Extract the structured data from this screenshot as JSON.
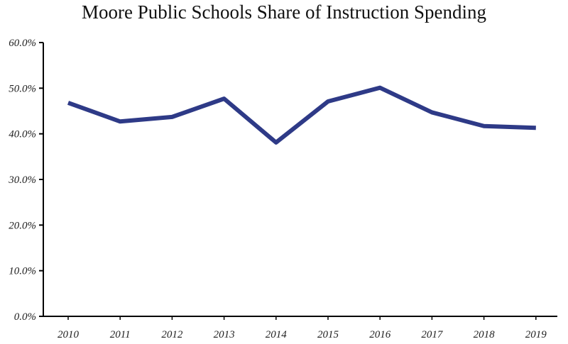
{
  "chart_data": {
    "type": "line",
    "title": "Moore Public Schools Share of Instruction Spending",
    "xlabel": "",
    "ylabel": "",
    "categories": [
      "2010",
      "2011",
      "2012",
      "2013",
      "2014",
      "2015",
      "2016",
      "2017",
      "2018",
      "2019"
    ],
    "series": [
      {
        "values": [
          46.8,
          42.7,
          43.7,
          47.7,
          38.1,
          47.1,
          50.1,
          44.7,
          41.7,
          41.3
        ]
      }
    ],
    "ylim": [
      0,
      60
    ],
    "yticks": [
      0,
      10,
      20,
      30,
      40,
      50,
      60
    ],
    "ytick_labels": [
      "0.0%",
      "10.0%",
      "20.0%",
      "30.0%",
      "40.0%",
      "50.0%",
      "60.0%"
    ],
    "grid": false,
    "legend": "none",
    "line_color": "#2e3a87"
  }
}
